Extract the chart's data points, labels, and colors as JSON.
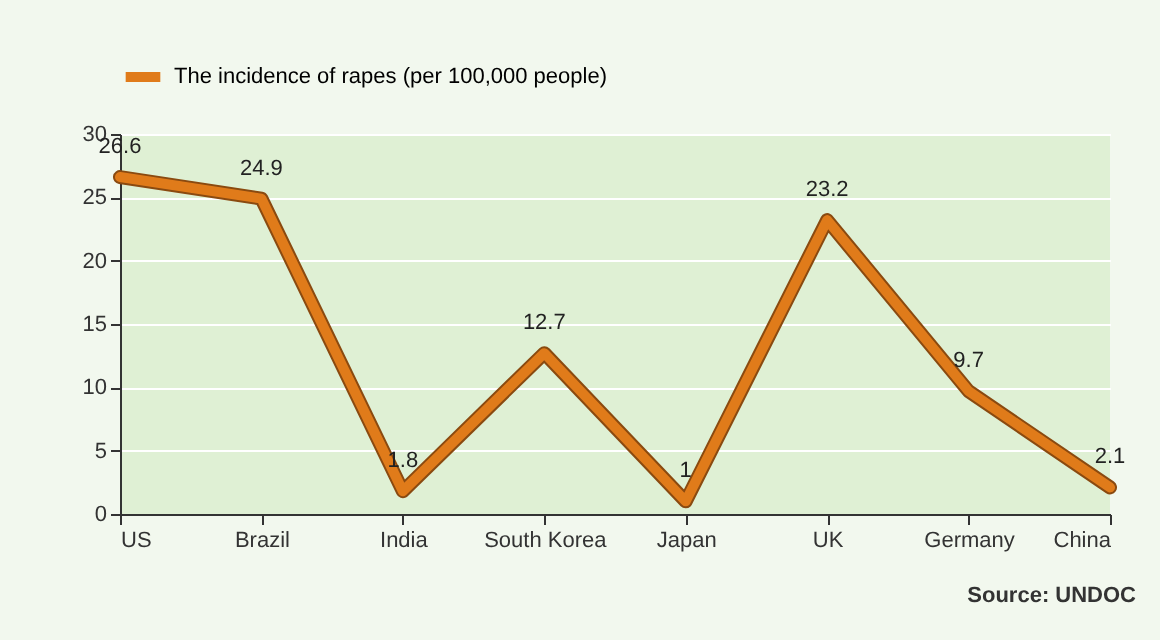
{
  "chart_data": {
    "type": "line",
    "categories": [
      "US",
      "Brazil",
      "India",
      "South Korea",
      "Japan",
      "UK",
      "Germany",
      "China"
    ],
    "series": [
      {
        "name": "The incidence of rapes (per 100,000 people)",
        "color": "#e07b1a",
        "values": [
          26.6,
          24.9,
          1.8,
          12.7,
          1,
          23.2,
          9.7,
          2.1
        ]
      }
    ],
    "ylim": [
      0,
      30
    ],
    "yticks": [
      0,
      5,
      10,
      15,
      20,
      25,
      30
    ],
    "grid": "y",
    "legend": "top",
    "data_labels": true,
    "marker": "none",
    "line_style": "solid",
    "annotations": [
      "Source: UNDOC"
    ]
  }
}
